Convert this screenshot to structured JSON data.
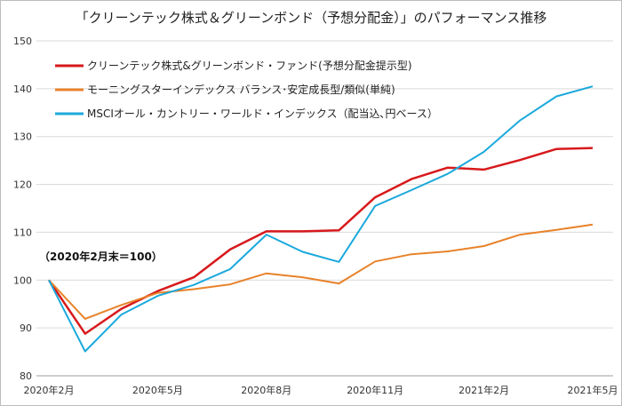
{
  "chart_data": {
    "type": "line",
    "title": "「クリーンテック株式＆グリーンボンド（予想分配金）」のパフォーマンス推移",
    "note": "（2020年2月末＝100）",
    "ylim": [
      80,
      150
    ],
    "yticks": [
      80,
      90,
      100,
      110,
      120,
      130,
      140,
      150
    ],
    "x": [
      "2020-02",
      "2020-03",
      "2020-04",
      "2020-05",
      "2020-06",
      "2020-07",
      "2020-08",
      "2020-09",
      "2020-10",
      "2020-11",
      "2020-12",
      "2021-01",
      "2021-02",
      "2021-03",
      "2021-04",
      "2021-05"
    ],
    "xtick_labels": [
      {
        "index": 0,
        "label": "2020年2月"
      },
      {
        "index": 3,
        "label": "2020年5月"
      },
      {
        "index": 6,
        "label": "2020年8月"
      },
      {
        "index": 9,
        "label": "2020年11月"
      },
      {
        "index": 12,
        "label": "2021年2月"
      },
      {
        "index": 15,
        "label": "2021年5月"
      }
    ],
    "grid": "horizontal",
    "legend_position": "top-left",
    "series": [
      {
        "name": "クリーンテック株式&グリーンボンド・ファンド(予想分配金提示型)",
        "color": "#d7191c",
        "values": [
          100,
          88.8,
          94.0,
          97.7,
          100.6,
          106.4,
          110.2,
          110.2,
          110.4,
          117.3,
          121.1,
          123.5,
          123.1,
          125.1,
          127.4,
          127.6
        ]
      },
      {
        "name": "モーニングスターインデックス バランス･安定成長型/類似(単純)",
        "color": "#e8822a",
        "values": [
          100,
          91.9,
          94.8,
          97.3,
          98.1,
          99.1,
          101.4,
          100.6,
          99.3,
          103.9,
          105.4,
          106.0,
          107.1,
          109.5,
          110.5,
          111.6
        ]
      },
      {
        "name": "MSCIオール・カントリー・ワールド・インデックス（配当込､円ベース）",
        "color": "#1ba9dc",
        "values": [
          100,
          85.1,
          92.8,
          96.7,
          99.0,
          102.3,
          109.5,
          105.9,
          103.8,
          115.5,
          118.8,
          122.2,
          126.8,
          133.4,
          138.4,
          140.5
        ]
      }
    ]
  }
}
